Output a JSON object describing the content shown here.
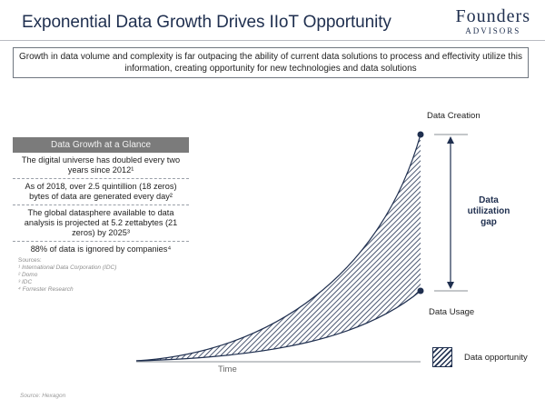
{
  "header": {
    "title": "Exponential Data Growth Drives IIoT Opportunity",
    "logo_main": "Founders",
    "logo_sub": "ADVISORS"
  },
  "banner": {
    "text": "Growth in data volume and complexity is far outpacing the ability of current data solutions to process and effectivity utilize this information, creating opportunity for new technologies and data solutions"
  },
  "glance": {
    "title": "Data Growth at a Glance",
    "items": [
      "The digital universe has doubled every two years since 2012¹",
      "As of 2018, over 2.5 quintillion (18 zeros) bytes of data are generated every day²",
      "The global datasphere available to data analysis is projected at 5.2 zettabytes (21 zeros) by 2025³",
      "88% of data is ignored by companies⁴"
    ]
  },
  "sources": {
    "label": "Sources:",
    "items": [
      "¹ International Data Corporation (IDC)",
      "² Domo",
      "³ IDC",
      "⁴ Forrester Research"
    ]
  },
  "diagram": {
    "data_creation_label": "Data Creation",
    "data_usage_label": "Data Usage",
    "gap_label": "Data utilization gap",
    "x_axis_label": "Time",
    "legend_label": "Data opportunity",
    "colors": {
      "navy": "#1f2f4f",
      "axis": "#8a8f96"
    }
  },
  "footer": {
    "source": "Source: Hexagon"
  }
}
